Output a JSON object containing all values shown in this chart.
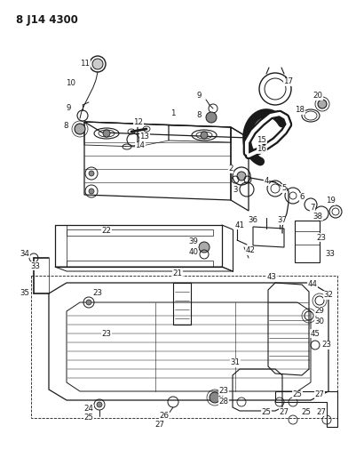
{
  "title": "8 J14 4300",
  "bg_color": "#ffffff",
  "line_color": "#1a1a1a",
  "title_fontsize": 8.5,
  "label_fontsize": 6.2,
  "fig_width": 4.02,
  "fig_height": 5.33,
  "dpi": 100
}
